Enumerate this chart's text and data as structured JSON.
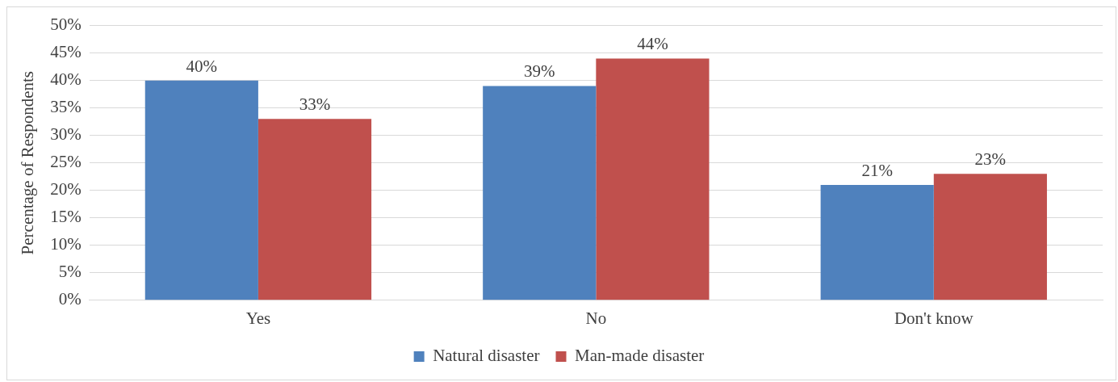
{
  "chart_data": {
    "type": "bar",
    "ylabel": "Percentage of Respondents",
    "categories": [
      "Yes",
      "No",
      "Don't know"
    ],
    "series": [
      {
        "name": "Natural disaster",
        "color": "#4f81bd",
        "values": [
          40,
          39,
          21
        ],
        "value_labels": [
          "40%",
          "39%",
          "21%"
        ]
      },
      {
        "name": "Man-made disaster",
        "color": "#c0504d",
        "values": [
          33,
          44,
          23
        ],
        "value_labels": [
          "33%",
          "44%",
          "23%"
        ]
      }
    ],
    "ylim": [
      0,
      50
    ],
    "yticks": [
      {
        "value": 0,
        "label": "0%"
      },
      {
        "value": 5,
        "label": "5%"
      },
      {
        "value": 10,
        "label": "10%"
      },
      {
        "value": 15,
        "label": "15%"
      },
      {
        "value": 20,
        "label": "20%"
      },
      {
        "value": 25,
        "label": "25%"
      },
      {
        "value": 30,
        "label": "30%"
      },
      {
        "value": 35,
        "label": "35%"
      },
      {
        "value": 40,
        "label": "40%"
      },
      {
        "value": 45,
        "label": "45%"
      },
      {
        "value": 50,
        "label": "50%"
      }
    ],
    "grid": "y",
    "legend": "bottom"
  }
}
